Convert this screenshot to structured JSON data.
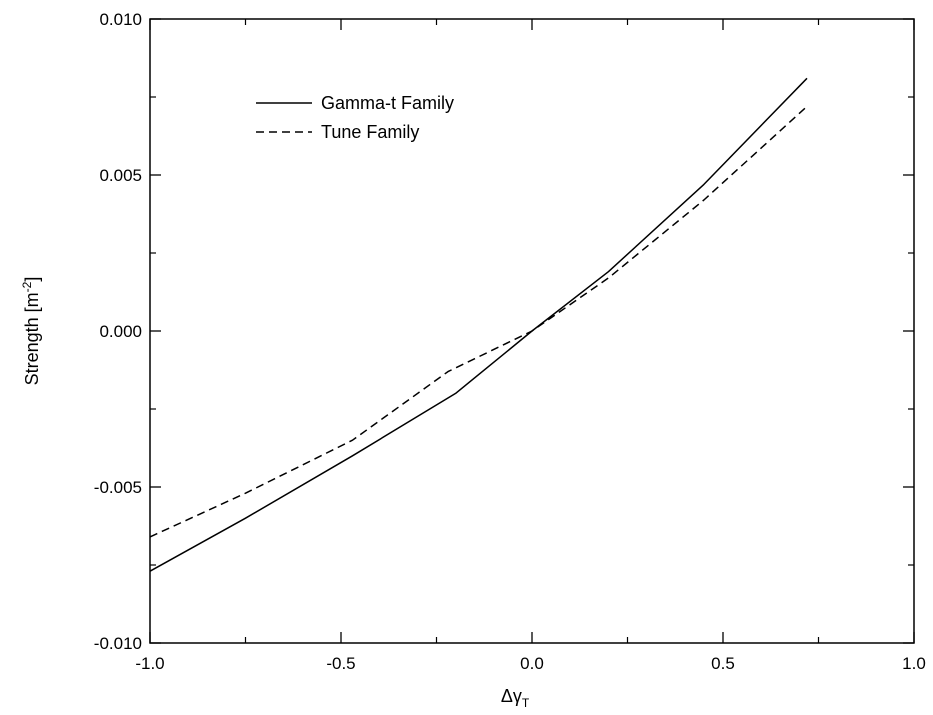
{
  "chart_data": {
    "type": "line",
    "title": "",
    "xlabel_main": "Δγ",
    "xlabel_sub": "T",
    "ylabel_main": "Strength [m",
    "ylabel_sup": "-2",
    "ylabel_close": "]",
    "xlim": [
      -1.0,
      1.0
    ],
    "ylim": [
      -0.01,
      0.01
    ],
    "x_ticks": [
      -1.0,
      -0.5,
      0.0,
      0.5,
      1.0
    ],
    "x_tick_labels": [
      "-1.0",
      "-0.5",
      "0.0",
      "0.5",
      "1.0"
    ],
    "y_ticks": [
      -0.01,
      -0.005,
      0.0,
      0.005,
      0.01
    ],
    "y_tick_labels": [
      "-0.010",
      "-0.005",
      "0.000",
      "0.005",
      "0.010"
    ],
    "grid": false,
    "legend_position": "top-left",
    "series": [
      {
        "name": "Gamma-t Family",
        "style": "solid",
        "color": "#000000",
        "x": [
          -1.0,
          -0.75,
          -0.47,
          -0.2,
          0.0,
          0.2,
          0.45,
          0.72
        ],
        "y": [
          -0.0077,
          -0.006,
          -0.004,
          -0.002,
          0.0,
          0.0019,
          0.0047,
          0.0081
        ]
      },
      {
        "name": "Tune Family",
        "style": "dashed",
        "color": "#000000",
        "x": [
          -1.0,
          -0.75,
          -0.47,
          -0.22,
          0.0,
          0.2,
          0.45,
          0.72
        ],
        "y": [
          -0.0066,
          -0.0052,
          -0.0035,
          -0.0013,
          0.0,
          0.0017,
          0.0042,
          0.0072
        ]
      }
    ]
  }
}
